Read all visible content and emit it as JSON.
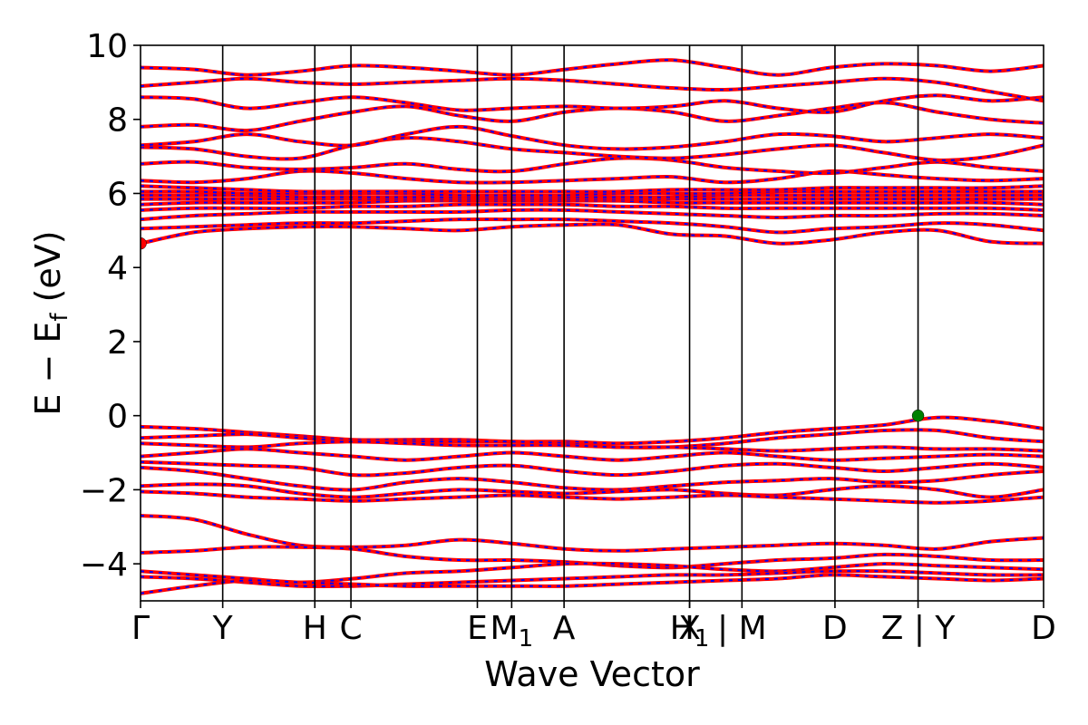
{
  "chart_data": {
    "type": "line",
    "title": "",
    "xlabel": "Wave Vector",
    "ylabel": "E − E_f (eV)",
    "ylabel_main": "E − E",
    "ylabel_sub": "f",
    "ylabel_unit": " (eV)",
    "ylim": [
      -5,
      10
    ],
    "yticks": [
      -4,
      -2,
      0,
      2,
      4,
      6,
      8,
      10
    ],
    "xlim": [
      0,
      1
    ],
    "kpoints": [
      {
        "label": "Γ",
        "x": 0.0
      },
      {
        "label": "Y",
        "x": 0.091
      },
      {
        "label": "H",
        "x": 0.193
      },
      {
        "label": "C",
        "x": 0.233
      },
      {
        "label": "E",
        "x": 0.373
      },
      {
        "label": "M",
        "sub": "1",
        "x": 0.411
      },
      {
        "label": "A",
        "x": 0.469
      },
      {
        "label": "X",
        "x": 0.608
      },
      {
        "label": "H",
        "sub": "1",
        "x": 0.608
      },
      {
        "label": "| M",
        "x": 0.666
      },
      {
        "label": "D",
        "x": 0.769
      },
      {
        "label": "Z | Y",
        "x": 0.861
      },
      {
        "label": "D",
        "x": 1.0
      }
    ],
    "vlines": [
      0.091,
      0.193,
      0.233,
      0.373,
      0.411,
      0.469,
      0.608,
      0.666,
      0.769,
      0.861
    ],
    "series": [
      {
        "name": "",
        "color": "#ff0000",
        "style": "solid",
        "values": []
      },
      {
        "name": "",
        "color": "#0000ff",
        "style": "dashed",
        "values": []
      }
    ],
    "conduction_bands": [
      {
        "y": [
          4.65,
          4.95,
          5.05,
          5.1,
          5.1,
          5.05,
          5.0,
          5.1,
          5.15,
          5.15,
          4.9,
          4.85,
          4.65,
          4.75,
          4.95,
          5.0,
          4.7,
          4.65
        ]
      },
      {
        "y": [
          5.05,
          5.1,
          5.15,
          5.2,
          5.2,
          5.25,
          5.3,
          5.3,
          5.3,
          5.25,
          5.2,
          5.1,
          4.95,
          5.05,
          5.1,
          5.2,
          5.15,
          5.0
        ]
      },
      {
        "y": [
          5.3,
          5.4,
          5.45,
          5.5,
          5.5,
          5.5,
          5.5,
          5.55,
          5.55,
          5.5,
          5.45,
          5.4,
          5.35,
          5.4,
          5.4,
          5.45,
          5.45,
          5.4
        ]
      },
      {
        "y": [
          5.55,
          5.6,
          5.6,
          5.6,
          5.65,
          5.65,
          5.7,
          5.7,
          5.7,
          5.65,
          5.65,
          5.6,
          5.6,
          5.6,
          5.6,
          5.6,
          5.6,
          5.55
        ]
      },
      {
        "y": [
          5.7,
          5.75,
          5.75,
          5.75,
          5.75,
          5.8,
          5.8,
          5.8,
          5.8,
          5.8,
          5.75,
          5.75,
          5.75,
          5.75,
          5.75,
          5.75,
          5.75,
          5.7
        ]
      },
      {
        "y": [
          5.85,
          5.85,
          5.85,
          5.85,
          5.85,
          5.85,
          5.85,
          5.85,
          5.85,
          5.85,
          5.85,
          5.85,
          5.85,
          5.85,
          5.85,
          5.85,
          5.85,
          5.85
        ]
      },
      {
        "y": [
          5.95,
          5.95,
          5.95,
          5.9,
          5.9,
          5.9,
          5.9,
          5.9,
          5.9,
          5.9,
          5.9,
          5.95,
          5.95,
          5.95,
          5.95,
          5.95,
          5.95,
          5.95
        ]
      },
      {
        "y": [
          6.05,
          6.05,
          6.0,
          6.0,
          6.0,
          6.0,
          5.95,
          5.95,
          5.95,
          6.0,
          6.0,
          6.0,
          6.05,
          6.05,
          6.05,
          6.05,
          6.05,
          6.05
        ]
      },
      {
        "y": [
          6.2,
          6.15,
          6.1,
          6.05,
          6.05,
          6.05,
          6.05,
          6.05,
          6.05,
          6.05,
          6.1,
          6.1,
          6.1,
          6.15,
          6.15,
          6.15,
          6.15,
          6.2
        ]
      },
      {
        "y": [
          6.35,
          6.3,
          6.4,
          6.6,
          6.55,
          6.4,
          6.3,
          6.3,
          6.35,
          6.4,
          6.45,
          6.3,
          6.4,
          6.6,
          6.5,
          6.4,
          6.35,
          6.4
        ]
      },
      {
        "y": [
          6.8,
          6.85,
          6.7,
          6.65,
          6.7,
          6.8,
          6.65,
          6.6,
          6.8,
          6.95,
          6.9,
          6.7,
          6.6,
          6.55,
          6.7,
          6.85,
          6.7,
          6.6
        ]
      },
      {
        "y": [
          7.25,
          7.2,
          7.0,
          6.95,
          7.3,
          7.5,
          7.4,
          7.2,
          7.1,
          7.0,
          6.95,
          7.05,
          7.2,
          7.3,
          7.1,
          6.9,
          7.0,
          7.3
        ]
      },
      {
        "y": [
          7.3,
          7.4,
          7.6,
          7.4,
          7.3,
          7.6,
          7.8,
          7.55,
          7.3,
          7.2,
          7.25,
          7.4,
          7.6,
          7.55,
          7.4,
          7.5,
          7.6,
          7.5
        ]
      },
      {
        "y": [
          7.8,
          7.85,
          7.7,
          7.95,
          8.2,
          8.35,
          8.1,
          7.95,
          8.2,
          8.3,
          8.2,
          7.95,
          8.1,
          8.3,
          8.45,
          8.2,
          8.0,
          7.9
        ]
      },
      {
        "y": [
          8.6,
          8.55,
          8.3,
          8.45,
          8.6,
          8.45,
          8.25,
          8.3,
          8.35,
          8.3,
          8.35,
          8.5,
          8.3,
          8.2,
          8.5,
          8.65,
          8.5,
          8.6
        ]
      },
      {
        "y": [
          8.9,
          9.0,
          9.1,
          9.0,
          8.95,
          9.0,
          9.05,
          9.1,
          9.05,
          8.95,
          8.85,
          8.8,
          8.9,
          9.0,
          9.1,
          9.0,
          8.75,
          8.5
        ]
      },
      {
        "y": [
          9.4,
          9.35,
          9.2,
          9.3,
          9.45,
          9.4,
          9.3,
          9.2,
          9.35,
          9.5,
          9.6,
          9.4,
          9.2,
          9.4,
          9.5,
          9.45,
          9.3,
          9.45
        ]
      }
    ],
    "valence_bands": [
      {
        "y": [
          -0.3,
          -0.35,
          -0.45,
          -0.55,
          -0.65,
          -0.65,
          -0.65,
          -0.7,
          -0.7,
          -0.75,
          -0.7,
          -0.6,
          -0.45,
          -0.35,
          -0.25,
          -0.05,
          -0.15,
          -0.35
        ]
      },
      {
        "y": [
          -0.6,
          -0.55,
          -0.5,
          -0.6,
          -0.7,
          -0.7,
          -0.7,
          -0.7,
          -0.75,
          -0.85,
          -0.85,
          -0.75,
          -0.6,
          -0.5,
          -0.4,
          -0.4,
          -0.6,
          -0.7
        ]
      },
      {
        "y": [
          -0.75,
          -0.8,
          -0.85,
          -0.75,
          -0.7,
          -0.75,
          -0.8,
          -0.8,
          -0.8,
          -0.85,
          -0.85,
          -0.9,
          -0.95,
          -0.9,
          -0.85,
          -0.9,
          -0.9,
          -0.95
        ]
      },
      {
        "y": [
          -1.1,
          -1.0,
          -0.9,
          -1.0,
          -1.1,
          -1.2,
          -1.1,
          -1.0,
          -1.1,
          -1.2,
          -1.1,
          -1.0,
          -1.1,
          -1.2,
          -1.15,
          -1.1,
          -1.05,
          -1.1
        ]
      },
      {
        "y": [
          -1.25,
          -1.3,
          -1.35,
          -1.4,
          -1.6,
          -1.55,
          -1.4,
          -1.35,
          -1.5,
          -1.6,
          -1.5,
          -1.35,
          -1.3,
          -1.4,
          -1.5,
          -1.4,
          -1.3,
          -1.4
        ]
      },
      {
        "y": [
          -1.4,
          -1.5,
          -1.7,
          -1.9,
          -2.0,
          -1.8,
          -1.7,
          -1.8,
          -1.95,
          -2.0,
          -1.9,
          -1.8,
          -1.75,
          -1.7,
          -1.8,
          -1.75,
          -1.6,
          -1.5
        ]
      },
      {
        "y": [
          -1.9,
          -1.85,
          -1.9,
          -2.1,
          -2.2,
          -2.1,
          -2.0,
          -2.05,
          -2.1,
          -2.05,
          -2.0,
          -2.1,
          -2.15,
          -2.0,
          -1.9,
          -2.0,
          -2.2,
          -2.0
        ]
      },
      {
        "y": [
          -2.05,
          -2.1,
          -2.2,
          -2.25,
          -2.3,
          -2.25,
          -2.2,
          -2.15,
          -2.2,
          -2.25,
          -2.2,
          -2.15,
          -2.2,
          -2.25,
          -2.3,
          -2.35,
          -2.3,
          -2.2
        ]
      },
      {
        "y": [
          -2.7,
          -2.8,
          -3.2,
          -3.5,
          -3.55,
          -3.5,
          -3.35,
          -3.45,
          -3.6,
          -3.65,
          -3.6,
          -3.55,
          -3.5,
          -3.45,
          -3.5,
          -3.6,
          -3.4,
          -3.3
        ]
      },
      {
        "y": [
          -3.7,
          -3.65,
          -3.55,
          -3.55,
          -3.6,
          -3.8,
          -3.9,
          -3.9,
          -3.95,
          -4.05,
          -4.1,
          -4.0,
          -3.9,
          -3.85,
          -3.75,
          -3.8,
          -3.9,
          -3.9
        ]
      },
      {
        "y": [
          -4.2,
          -4.3,
          -4.4,
          -4.5,
          -4.4,
          -4.25,
          -4.2,
          -4.1,
          -4.0,
          -4.0,
          -4.05,
          -4.15,
          -4.2,
          -4.1,
          -4.0,
          -4.05,
          -4.1,
          -4.15
        ]
      },
      {
        "y": [
          -4.35,
          -4.4,
          -4.5,
          -4.6,
          -4.6,
          -4.55,
          -4.5,
          -4.45,
          -4.4,
          -4.35,
          -4.3,
          -4.3,
          -4.25,
          -4.2,
          -4.2,
          -4.25,
          -4.3,
          -4.3
        ]
      },
      {
        "y": [
          -4.8,
          -4.6,
          -4.45,
          -4.5,
          -4.55,
          -4.6,
          -4.6,
          -4.6,
          -4.6,
          -4.55,
          -4.5,
          -4.45,
          -4.4,
          -4.3,
          -4.35,
          -4.4,
          -4.45,
          -4.4
        ]
      }
    ],
    "markers": [
      {
        "x": 0.0,
        "y": 4.65,
        "color": "#ff0000"
      },
      {
        "x": 0.861,
        "y": 0.0,
        "color": "#008000"
      }
    ]
  }
}
